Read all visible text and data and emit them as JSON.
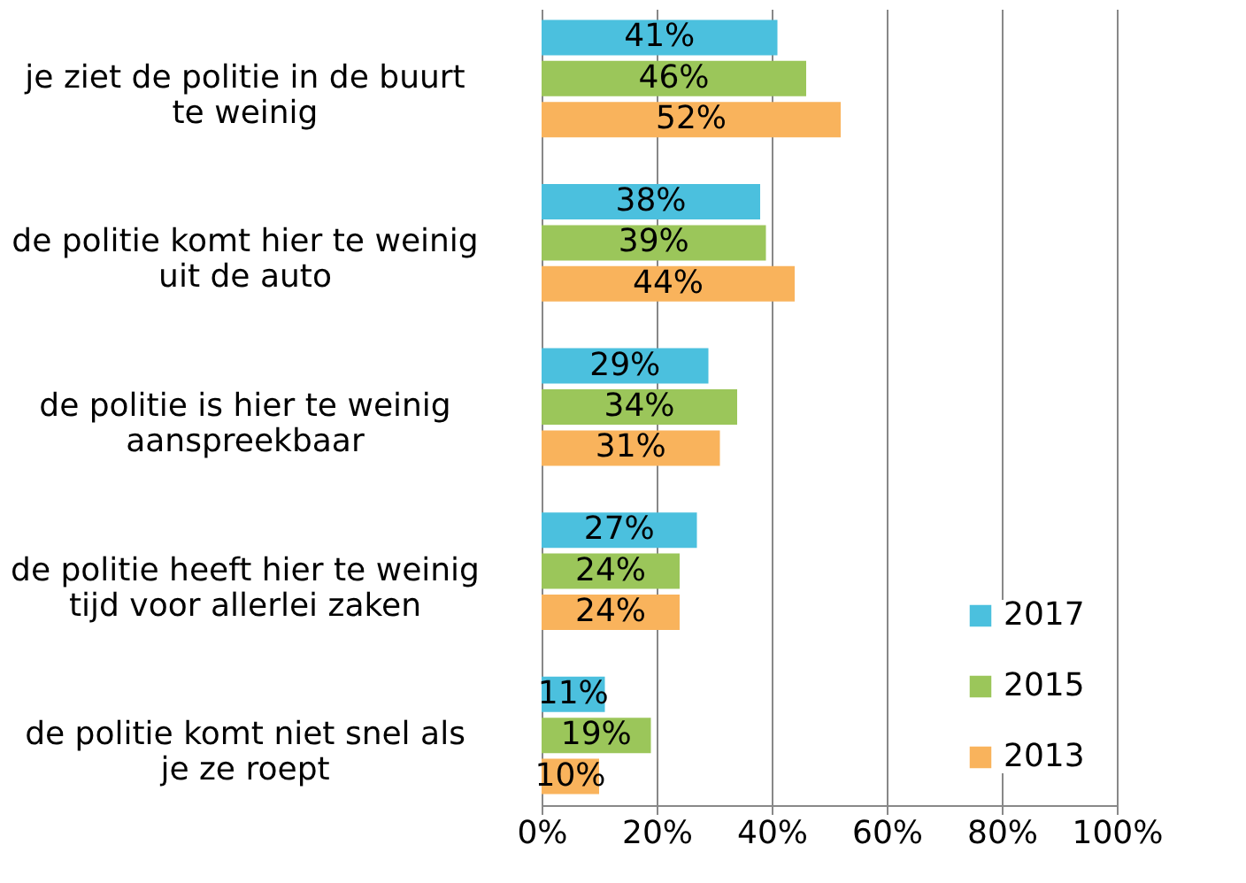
{
  "chart_data": {
    "type": "bar",
    "orientation": "horizontal",
    "categories": [
      "je ziet de politie in de buurt te weinig",
      "de politie komt hier te weinig uit de auto",
      "de politie is hier te weinig aanspreekbaar",
      "de politie heeft hier te weinig tijd voor allerlei zaken",
      "de politie komt niet snel als je ze roept"
    ],
    "series": [
      {
        "name": "2017",
        "color": "#4bc0de",
        "values": [
          41,
          38,
          29,
          27,
          11
        ],
        "value_labels": [
          "41%",
          "38%",
          "29%",
          "27%",
          "11%"
        ]
      },
      {
        "name": "2015",
        "color": "#9bc65a",
        "values": [
          46,
          39,
          34,
          24,
          19
        ],
        "value_labels": [
          "46%",
          "39%",
          "34%",
          "24%",
          "19%"
        ]
      },
      {
        "name": "2013",
        "color": "#f9b35c",
        "values": [
          52,
          44,
          31,
          24,
          10
        ],
        "value_labels": [
          "52%",
          "44%",
          "31%",
          "24%",
          "10%"
        ]
      }
    ],
    "xlim": [
      0,
      100
    ],
    "xticks": [
      {
        "value": 0,
        "label": "0%"
      },
      {
        "value": 20,
        "label": "20%"
      },
      {
        "value": 40,
        "label": "40%"
      },
      {
        "value": 60,
        "label": "60%"
      },
      {
        "value": 80,
        "label": "80%"
      },
      {
        "value": 100,
        "label": "100%"
      }
    ],
    "grid": "x",
    "legend": "bottom right"
  }
}
